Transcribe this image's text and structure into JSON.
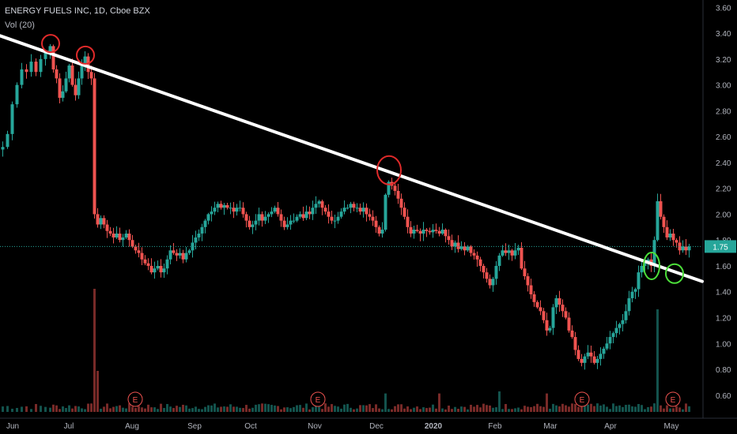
{
  "header": {
    "symbol": "ENERGY FUELS INC, 1D, Cboe BZX",
    "volume_label": "Vol (20)"
  },
  "colors": {
    "background": "#000000",
    "up": "#26a69a",
    "down": "#ef5350",
    "trendline": "#ffffff",
    "circle_red": "#e02a2a",
    "circle_green": "#4cdf3a",
    "price_label_bg": "#26a69a"
  },
  "chart_data": {
    "type": "candlestick",
    "ylim": [
      0.55,
      3.62
    ],
    "y_ticks": [
      "3.60",
      "3.40",
      "3.20",
      "3.00",
      "2.80",
      "2.60",
      "2.40",
      "2.20",
      "2.00",
      "1.80",
      "1.60",
      "1.40",
      "1.20",
      "1.00",
      "0.80",
      "0.60"
    ],
    "x_ticks": [
      "Jun",
      "Jul",
      "Aug",
      "Sep",
      "Oct",
      "Nov",
      "Dec",
      "2020",
      "Feb",
      "Mar",
      "Apr",
      "May"
    ],
    "last_price": "1.75",
    "price_series": [
      [
        0,
        2.52
      ],
      [
        6,
        2.62
      ],
      [
        12,
        2.85
      ],
      [
        18,
        3.0
      ],
      [
        24,
        3.12
      ],
      [
        30,
        3.1
      ],
      [
        36,
        3.18
      ],
      [
        42,
        3.1
      ],
      [
        48,
        3.2
      ],
      [
        54,
        3.25
      ],
      [
        60,
        3.3
      ],
      [
        64,
        3.12
      ],
      [
        68,
        3.05
      ],
      [
        72,
        2.9
      ],
      [
        76,
        2.95
      ],
      [
        80,
        3.05
      ],
      [
        84,
        3.15
      ],
      [
        88,
        3.0
      ],
      [
        92,
        2.92
      ],
      [
        96,
        3.05
      ],
      [
        100,
        3.15
      ],
      [
        104,
        3.22
      ],
      [
        108,
        3.1
      ],
      [
        112,
        3.05
      ],
      [
        116,
        2.0
      ],
      [
        120,
        1.92
      ],
      [
        124,
        1.97
      ],
      [
        128,
        1.92
      ],
      [
        132,
        1.87
      ],
      [
        136,
        1.85
      ],
      [
        140,
        1.82
      ],
      [
        144,
        1.85
      ],
      [
        148,
        1.8
      ],
      [
        152,
        1.82
      ],
      [
        156,
        1.85
      ],
      [
        160,
        1.8
      ],
      [
        164,
        1.75
      ],
      [
        168,
        1.72
      ],
      [
        172,
        1.7
      ],
      [
        176,
        1.65
      ],
      [
        180,
        1.62
      ],
      [
        184,
        1.6
      ],
      [
        188,
        1.55
      ],
      [
        192,
        1.58
      ],
      [
        196,
        1.6
      ],
      [
        200,
        1.55
      ],
      [
        204,
        1.58
      ],
      [
        208,
        1.65
      ],
      [
        212,
        1.72
      ],
      [
        216,
        1.7
      ],
      [
        220,
        1.68
      ],
      [
        224,
        1.7
      ],
      [
        228,
        1.65
      ],
      [
        232,
        1.7
      ],
      [
        236,
        1.72
      ],
      [
        240,
        1.78
      ],
      [
        244,
        1.82
      ],
      [
        248,
        1.85
      ],
      [
        252,
        1.9
      ],
      [
        256,
        1.95
      ],
      [
        260,
        2.0
      ],
      [
        264,
        2.02
      ],
      [
        268,
        2.05
      ],
      [
        272,
        2.08
      ],
      [
        276,
        2.05
      ],
      [
        280,
        2.07
      ],
      [
        284,
        2.05
      ],
      [
        288,
        2.05
      ],
      [
        292,
        2.02
      ],
      [
        296,
        2.05
      ],
      [
        300,
        2.05
      ],
      [
        304,
        2.0
      ],
      [
        308,
        1.95
      ],
      [
        312,
        1.9
      ],
      [
        316,
        1.92
      ],
      [
        320,
        1.95
      ],
      [
        324,
        2.0
      ],
      [
        328,
        1.95
      ],
      [
        332,
        1.98
      ],
      [
        336,
        2.0
      ],
      [
        340,
        2.02
      ],
      [
        344,
        2.05
      ],
      [
        348,
        2.0
      ],
      [
        352,
        1.95
      ],
      [
        356,
        1.9
      ],
      [
        360,
        1.92
      ],
      [
        364,
        1.95
      ],
      [
        368,
        1.95
      ],
      [
        372,
        1.98
      ],
      [
        376,
        2.0
      ],
      [
        380,
        1.97
      ],
      [
        384,
        2.02
      ],
      [
        388,
        2.0
      ],
      [
        392,
        2.05
      ],
      [
        396,
        2.08
      ],
      [
        400,
        2.1
      ],
      [
        404,
        2.05
      ],
      [
        408,
        2.02
      ],
      [
        412,
        1.98
      ],
      [
        416,
        1.95
      ],
      [
        420,
        1.95
      ],
      [
        424,
        1.98
      ],
      [
        428,
        2.02
      ],
      [
        432,
        2.05
      ],
      [
        436,
        2.05
      ],
      [
        440,
        2.08
      ],
      [
        444,
        2.05
      ],
      [
        448,
        2.05
      ],
      [
        452,
        2.02
      ],
      [
        456,
        2.05
      ],
      [
        460,
        2.0
      ],
      [
        464,
        1.98
      ],
      [
        468,
        1.95
      ],
      [
        472,
        1.9
      ],
      [
        476,
        1.85
      ],
      [
        480,
        1.88
      ],
      [
        484,
        2.15
      ],
      [
        488,
        2.25
      ],
      [
        492,
        2.22
      ],
      [
        496,
        2.18
      ],
      [
        500,
        2.12
      ],
      [
        504,
        2.05
      ],
      [
        508,
        1.98
      ],
      [
        512,
        1.9
      ],
      [
        516,
        1.85
      ],
      [
        520,
        1.88
      ],
      [
        524,
        1.87
      ],
      [
        528,
        1.85
      ],
      [
        532,
        1.88
      ],
      [
        536,
        1.87
      ],
      [
        540,
        1.86
      ],
      [
        544,
        1.88
      ],
      [
        548,
        1.87
      ],
      [
        552,
        1.85
      ],
      [
        556,
        1.88
      ],
      [
        560,
        1.83
      ],
      [
        564,
        1.8
      ],
      [
        568,
        1.75
      ],
      [
        572,
        1.78
      ],
      [
        576,
        1.73
      ],
      [
        580,
        1.75
      ],
      [
        584,
        1.72
      ],
      [
        588,
        1.75
      ],
      [
        592,
        1.7
      ],
      [
        596,
        1.68
      ],
      [
        600,
        1.65
      ],
      [
        604,
        1.6
      ],
      [
        608,
        1.55
      ],
      [
        612,
        1.5
      ],
      [
        616,
        1.45
      ],
      [
        620,
        1.5
      ],
      [
        624,
        1.6
      ],
      [
        628,
        1.68
      ],
      [
        632,
        1.72
      ],
      [
        636,
        1.7
      ],
      [
        640,
        1.72
      ],
      [
        644,
        1.68
      ],
      [
        648,
        1.72
      ],
      [
        652,
        1.74
      ],
      [
        656,
        1.58
      ],
      [
        660,
        1.52
      ],
      [
        664,
        1.45
      ],
      [
        668,
        1.38
      ],
      [
        672,
        1.32
      ],
      [
        676,
        1.28
      ],
      [
        680,
        1.25
      ],
      [
        684,
        1.18
      ],
      [
        688,
        1.1
      ],
      [
        692,
        1.12
      ],
      [
        696,
        1.28
      ],
      [
        700,
        1.35
      ],
      [
        704,
        1.3
      ],
      [
        708,
        1.25
      ],
      [
        712,
        1.2
      ],
      [
        716,
        1.1
      ],
      [
        720,
        1.05
      ],
      [
        724,
        0.95
      ],
      [
        728,
        0.88
      ],
      [
        732,
        0.85
      ],
      [
        736,
        0.9
      ],
      [
        740,
        0.93
      ],
      [
        744,
        0.9
      ],
      [
        748,
        0.85
      ],
      [
        752,
        0.88
      ],
      [
        756,
        0.92
      ],
      [
        760,
        0.96
      ],
      [
        764,
        1.0
      ],
      [
        768,
        1.05
      ],
      [
        772,
        1.08
      ],
      [
        776,
        1.12
      ],
      [
        780,
        1.15
      ],
      [
        784,
        1.18
      ],
      [
        788,
        1.25
      ],
      [
        792,
        1.35
      ],
      [
        796,
        1.4
      ],
      [
        800,
        1.42
      ],
      [
        804,
        1.55
      ],
      [
        808,
        1.6
      ],
      [
        812,
        1.62
      ],
      [
        816,
        1.65
      ],
      [
        820,
        1.6
      ],
      [
        824,
        1.8
      ],
      [
        828,
        2.1
      ],
      [
        832,
        1.98
      ],
      [
        836,
        1.9
      ],
      [
        840,
        1.82
      ],
      [
        844,
        1.85
      ],
      [
        848,
        1.8
      ],
      [
        852,
        1.78
      ],
      [
        856,
        1.72
      ],
      [
        860,
        1.75
      ],
      [
        864,
        1.72
      ],
      [
        868,
        1.75
      ]
    ],
    "volume_spikes": [
      [
        116,
        0.6
      ],
      [
        120,
        0.2
      ],
      [
        628,
        0.1
      ],
      [
        688,
        0.09
      ],
      [
        828,
        0.5
      ],
      [
        484,
        0.09
      ],
      [
        552,
        0.09
      ]
    ],
    "trendline": {
      "from": [
        "late May",
        3.38
      ],
      "to": [
        "mid May",
        1.48
      ]
    },
    "earnings_markers": [
      "E",
      "E",
      "E",
      "E"
    ],
    "annotations": {
      "red_circles": 3,
      "green_circles": 2
    }
  }
}
